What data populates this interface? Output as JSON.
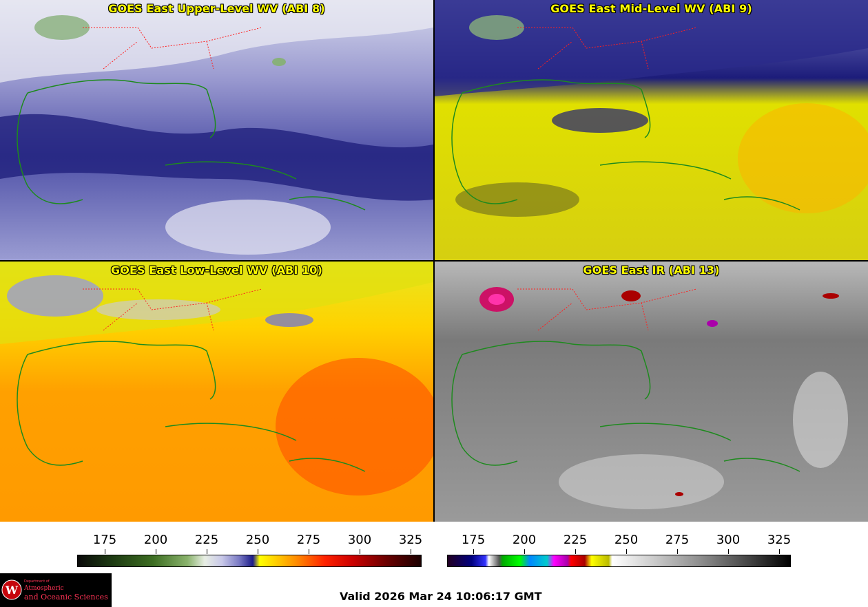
{
  "panels": [
    {
      "title": "GOES East Upper-Level WV (ABI 8)"
    },
    {
      "title": "GOES East Mid-Level WV (ABI 9)"
    },
    {
      "title": "GOES East Low-Level WV (ABI 10)"
    },
    {
      "title": "GOES East IR (ABI 13)"
    }
  ],
  "colorbars": {
    "wv": {
      "ticks": [
        "175",
        "200",
        "225",
        "250",
        "275",
        "300",
        "325"
      ]
    },
    "ir": {
      "ticks": [
        "175",
        "200",
        "225",
        "250",
        "275",
        "300",
        "325"
      ]
    }
  },
  "footer": {
    "valid_time": "Valid 2026 Mar 24 10:06:17 GMT",
    "logo_small": "Department of",
    "logo_line1": "Atmospheric",
    "logo_line2": "and Oceanic Sciences"
  },
  "colors": {
    "title_text": "#ffff00",
    "state_borders": "#ff2020",
    "coastlines": "#1e8a1e",
    "logo_text": "#ff3355"
  }
}
